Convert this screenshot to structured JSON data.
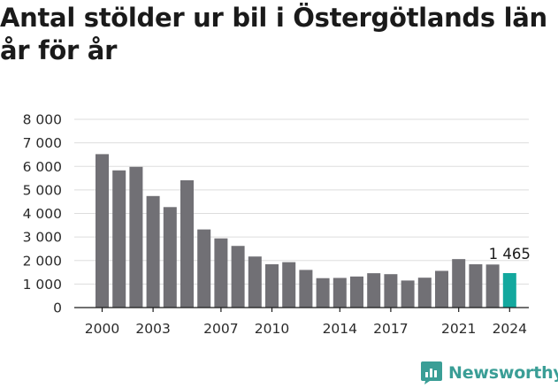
{
  "title": "Antal stölder ur bil i Östergötlands län år för år",
  "brand": {
    "name": "Newsworthy",
    "color": "#3a9e96"
  },
  "colors": {
    "bar": "#717075",
    "highlight": "#13a89e",
    "grid": "#dddddd"
  },
  "chart_data": {
    "type": "bar",
    "title": "Antal stölder ur bil i Östergötlands län år för år",
    "xlabel": "",
    "ylabel": "",
    "ylim": [
      0,
      8000
    ],
    "yticks": [
      0,
      1000,
      2000,
      3000,
      4000,
      5000,
      6000,
      7000,
      8000
    ],
    "ytick_labels": [
      "0",
      "1 000",
      "2 000",
      "3 000",
      "4 000",
      "5 000",
      "6 000",
      "7 000",
      "8 000"
    ],
    "categories": [
      2000,
      2001,
      2002,
      2003,
      2004,
      2005,
      2006,
      2007,
      2008,
      2009,
      2010,
      2011,
      2012,
      2013,
      2014,
      2015,
      2016,
      2017,
      2018,
      2019,
      2020,
      2021,
      2022,
      2023,
      2024
    ],
    "xtick_labels": [
      "2000",
      "2003",
      "2007",
      "2010",
      "2014",
      "2017",
      "2021",
      "2024"
    ],
    "values": [
      6520,
      5830,
      5980,
      4740,
      4270,
      5410,
      3320,
      2940,
      2620,
      2170,
      1840,
      1930,
      1600,
      1250,
      1260,
      1320,
      1460,
      1420,
      1150,
      1270,
      1560,
      2060,
      1840,
      1830,
      1465
    ],
    "highlight_index": 24,
    "data_labels": [
      {
        "index": 24,
        "text": "1 465"
      }
    ],
    "grid": true,
    "legend": "none"
  }
}
